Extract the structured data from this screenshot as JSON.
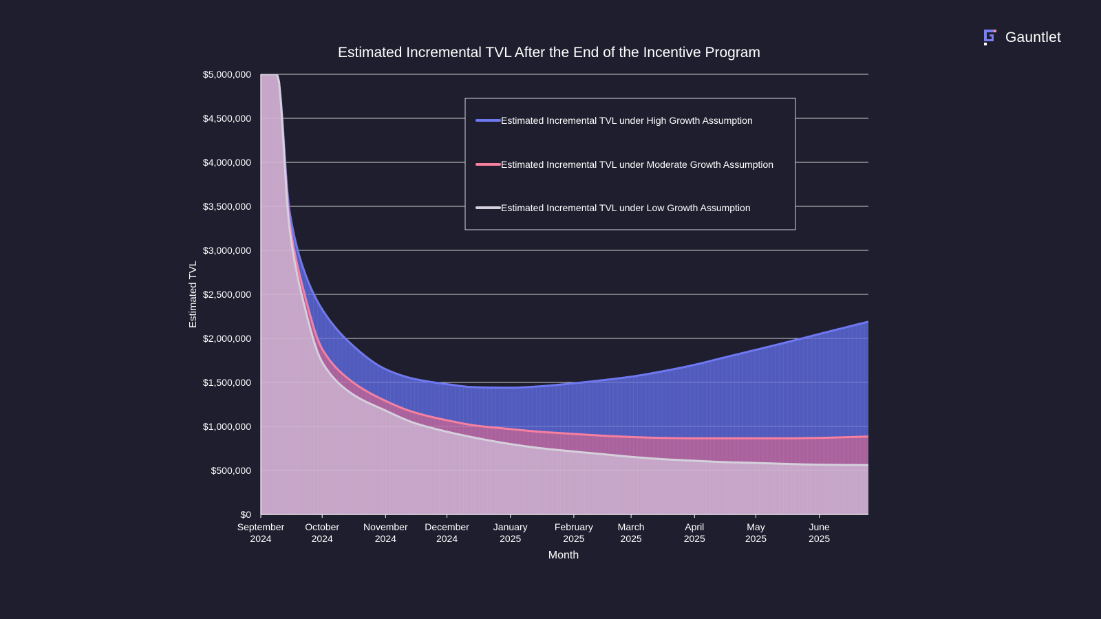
{
  "brand": {
    "name": "Gauntlet",
    "logo_icon": "gauntlet-logo-icon",
    "logo_colors": [
      "#7b7ff5",
      "#f08aa8"
    ]
  },
  "colors": {
    "background": "#1e1e2e",
    "high": "#6f78f0",
    "moderate": "#f7809e",
    "low": "#d4d0dc",
    "fill_high": "#5560c8",
    "fill_moderate": "#b0639a",
    "fill_low": "#c7a7c9",
    "grid": "#ffffff"
  },
  "chart_data": {
    "type": "area",
    "title": "Estimated Incremental TVL After the End of the Incentive Program",
    "xlabel": "Month",
    "ylabel": "Estimated TVL",
    "ylim": [
      0,
      5000000
    ],
    "yticks": [
      {
        "value": 0,
        "label": "$0"
      },
      {
        "value": 500000,
        "label": "$500,000"
      },
      {
        "value": 1000000,
        "label": "$1,000,000"
      },
      {
        "value": 1500000,
        "label": "$1,500,000"
      },
      {
        "value": 2000000,
        "label": "$2,000,000"
      },
      {
        "value": 2500000,
        "label": "$2,500,000"
      },
      {
        "value": 3000000,
        "label": "$3,000,000"
      },
      {
        "value": 3500000,
        "label": "$3,500,000"
      },
      {
        "value": 4000000,
        "label": "$4,000,000"
      },
      {
        "value": 4500000,
        "label": "$4,500,000"
      },
      {
        "value": 5000000,
        "label": "$5,000,000"
      }
    ],
    "xlim": [
      "2024-09-01",
      "2025-06-25"
    ],
    "xticks": [
      {
        "date": "2024-09-01",
        "month": "September",
        "year": "2024"
      },
      {
        "date": "2024-10-01",
        "month": "October",
        "year": "2024"
      },
      {
        "date": "2024-11-01",
        "month": "November",
        "year": "2024"
      },
      {
        "date": "2024-12-01",
        "month": "December",
        "year": "2024"
      },
      {
        "date": "2025-01-01",
        "month": "January",
        "year": "2025"
      },
      {
        "date": "2025-02-01",
        "month": "February",
        "year": "2025"
      },
      {
        "date": "2025-03-01",
        "month": "March",
        "year": "2025"
      },
      {
        "date": "2025-04-01",
        "month": "April",
        "year": "2025"
      },
      {
        "date": "2025-05-01",
        "month": "May",
        "year": "2025"
      },
      {
        "date": "2025-06-01",
        "month": "June",
        "year": "2025"
      }
    ],
    "grid": "horizontal",
    "legend_position": "top-right",
    "x": [
      "2024-09-01",
      "2024-09-09",
      "2024-09-15",
      "2024-09-22",
      "2024-10-01",
      "2024-10-15",
      "2024-11-01",
      "2024-11-15",
      "2024-12-01",
      "2024-12-15",
      "2025-01-01",
      "2025-01-15",
      "2025-02-01",
      "2025-02-15",
      "2025-03-01",
      "2025-03-15",
      "2025-04-01",
      "2025-04-15",
      "2025-05-01",
      "2025-05-15",
      "2025-06-01",
      "2025-06-25"
    ],
    "series": [
      {
        "name": "Estimated Incremental TVL under High Growth Assumption",
        "color": "#6f78f0",
        "values": [
          5000000,
          5000000,
          3450000,
          2780000,
          2330000,
          1940000,
          1650000,
          1540000,
          1480000,
          1445000,
          1440000,
          1455000,
          1490000,
          1525000,
          1565000,
          1620000,
          1700000,
          1780000,
          1870000,
          1950000,
          2050000,
          2190000
        ]
      },
      {
        "name": "Estimated Incremental TVL under Moderate Growth Assumption",
        "color": "#f7809e",
        "values": [
          5000000,
          5000000,
          3330000,
          2540000,
          1880000,
          1520000,
          1290000,
          1160000,
          1070000,
          1010000,
          970000,
          940000,
          915000,
          895000,
          880000,
          870000,
          865000,
          865000,
          865000,
          865000,
          870000,
          885000
        ]
      },
      {
        "name": "Estimated Incremental TVL under Low Growth Assumption",
        "color": "#d4d0dc",
        "values": [
          5000000,
          5000000,
          3250000,
          2400000,
          1730000,
          1380000,
          1180000,
          1040000,
          940000,
          870000,
          800000,
          755000,
          715000,
          685000,
          655000,
          630000,
          610000,
          595000,
          585000,
          575000,
          565000,
          560000
        ]
      }
    ]
  }
}
